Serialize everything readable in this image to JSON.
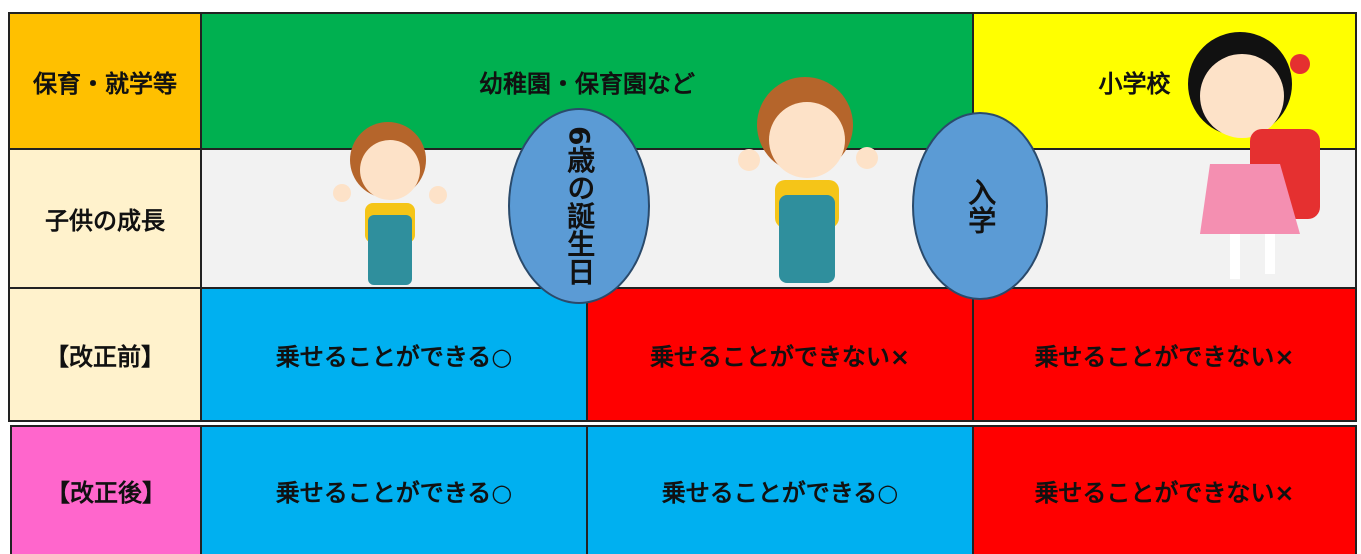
{
  "rows": [
    {
      "label": "保育・就学等",
      "cells": [
        "幼稚園・保育園など",
        "小学校"
      ]
    },
    {
      "label": "子供の成長",
      "cells": []
    },
    {
      "label": "【改正前】",
      "cells": [
        "乗せることができる○",
        "乗せることができない×",
        "乗せることができない×"
      ]
    },
    {
      "label": "【改正後】",
      "cells": [
        "乗せることができる○",
        "乗せることができる○",
        "乗せることができない×"
      ]
    }
  ],
  "ovals": [
    "6歳の誕生日",
    "入学"
  ]
}
